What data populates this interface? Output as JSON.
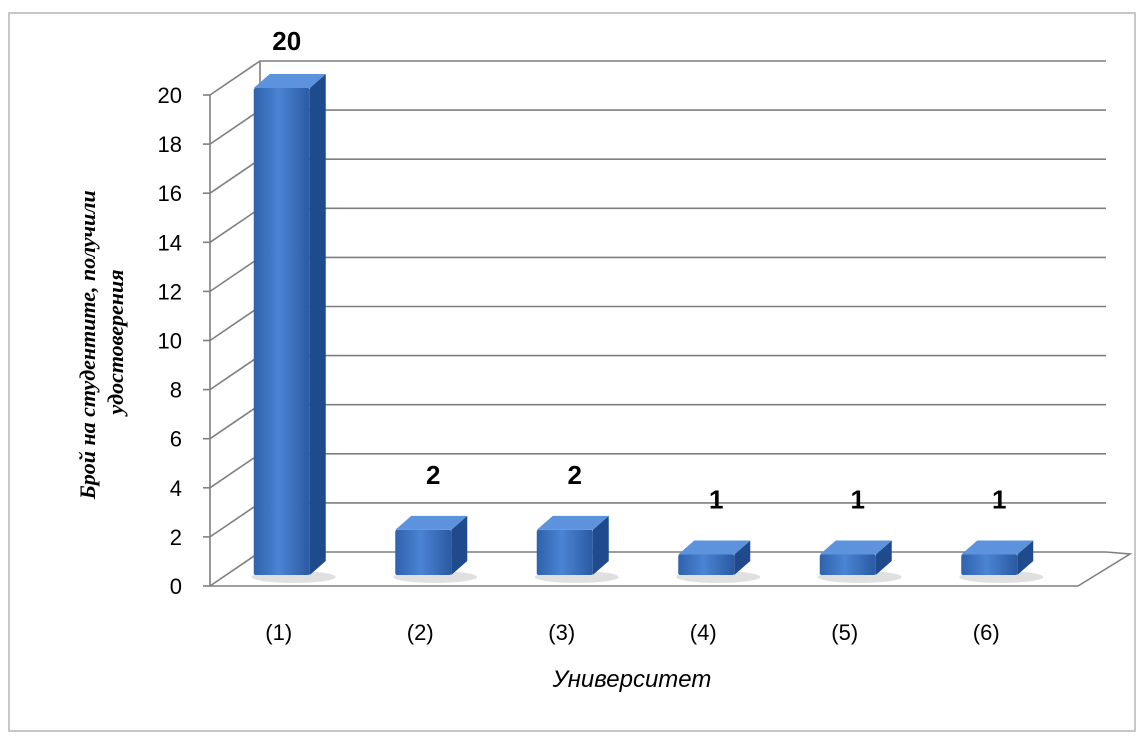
{
  "chart_data": {
    "type": "bar",
    "categories": [
      "(1)",
      "(2)",
      "(3)",
      "(4)",
      "(5)",
      "(6)"
    ],
    "values": [
      20,
      2,
      2,
      1,
      1,
      1
    ],
    "data_labels": [
      "20",
      "2",
      "2",
      "1",
      "1",
      "1"
    ],
    "xlabel": "Университет",
    "ylabel_lines": [
      "Брой на студентите, получили",
      "удостоверения"
    ],
    "ylim": [
      0,
      20
    ],
    "yticks": [
      "0",
      "2",
      "4",
      "6",
      "8",
      "10",
      "12",
      "14",
      "16",
      "18",
      "20"
    ],
    "grid": true,
    "style": "3d",
    "colors": {
      "bar_front": "#3a70c0",
      "bar_side": "#1f4b8c",
      "bar_top": "#5d93dc",
      "grid": "#7f7f7f"
    }
  }
}
